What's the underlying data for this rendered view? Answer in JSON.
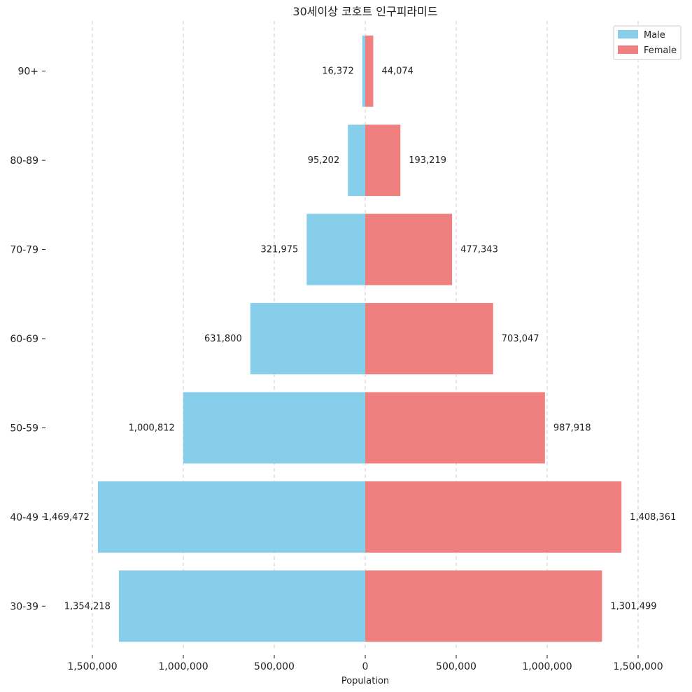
{
  "chart_data": {
    "type": "bar",
    "orientation": "horizontal-population-pyramid",
    "title": "30세이상 코호트 인구피라미드",
    "xlabel": "Population",
    "ylabel": "",
    "categories": [
      "30-39",
      "40-49",
      "50-59",
      "60-69",
      "70-79",
      "80-89",
      "90+"
    ],
    "series": [
      {
        "name": "Male",
        "color": "#87CEEB",
        "side": "left",
        "values": [
          1354218,
          1469472,
          1000812,
          631800,
          321975,
          95202,
          16372
        ],
        "labels": [
          "1,354,218",
          "1,469,472",
          "1,000,812",
          "631,800",
          "321,975",
          "95,202",
          "16,372"
        ]
      },
      {
        "name": "Female",
        "color": "#F08080",
        "side": "right",
        "values": [
          1301499,
          1408361,
          987918,
          703047,
          477343,
          193219,
          44074
        ],
        "labels": [
          "1,301,499",
          "1,408,361",
          "987,918",
          "703,047",
          "477,343",
          "193,219",
          "44,074"
        ]
      }
    ],
    "xlim": [
      -1500000,
      1500000
    ],
    "xticks": [
      -1500000,
      -1000000,
      -500000,
      0,
      500000,
      1000000,
      1500000
    ],
    "xtick_labels": [
      "1,500,000",
      "1,000,000",
      "500,000",
      "0",
      "500,000",
      "1,000,000",
      "1,500,000"
    ],
    "grid": "vertical dashed",
    "legend": "top-right"
  }
}
